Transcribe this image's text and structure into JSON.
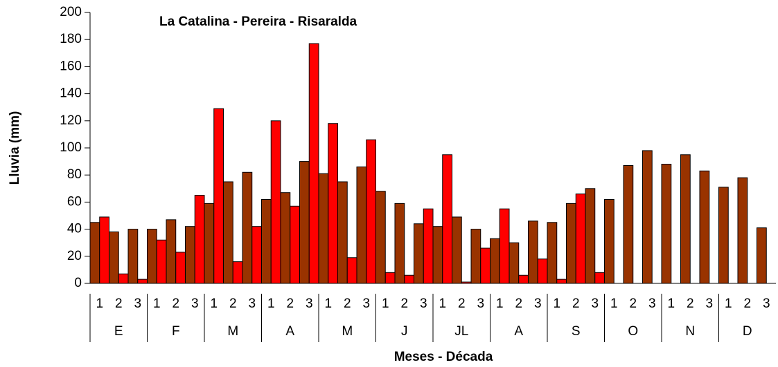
{
  "chart_data": {
    "type": "bar",
    "title": "La Catalina - Pereira - Risaralda",
    "x_label": "Meses - Década",
    "y_label": "Lluvia (mm)",
    "categories": [
      "1",
      "2",
      "3",
      "1",
      "2",
      "3",
      "1",
      "2",
      "3",
      "1",
      "2",
      "3",
      "1",
      "2",
      "3",
      "1",
      "2",
      "3",
      "1",
      "2",
      "3",
      "1",
      "2",
      "3",
      "1",
      "2",
      "3",
      "1",
      "2",
      "3",
      "1",
      "2",
      "3",
      "1",
      "2",
      "3"
    ],
    "groups": [
      "E",
      "F",
      "M",
      "A",
      "M",
      "J",
      "JL",
      "A",
      "S",
      "O",
      "N",
      "D"
    ],
    "series": [
      {
        "color": "#993300",
        "values": [
          45,
          38,
          40,
          40,
          47,
          42,
          59,
          75,
          82,
          62,
          67,
          90,
          81,
          75,
          86,
          68,
          59,
          44,
          42,
          49,
          40,
          33,
          30,
          46,
          45,
          59,
          70,
          62,
          87,
          98,
          88,
          95,
          83,
          71,
          78,
          41
        ]
      },
      {
        "color": "#ff0000",
        "values": [
          49,
          7,
          3,
          32,
          23,
          65,
          129,
          16,
          42,
          120,
          57,
          177,
          118,
          19,
          106,
          8,
          6,
          55,
          95,
          1,
          26,
          55,
          6,
          18,
          3,
          66,
          8,
          null,
          null,
          null,
          null,
          null,
          null,
          null,
          null,
          null
        ]
      }
    ],
    "ylim": [
      0,
      200
    ],
    "yticks": [
      0,
      20,
      40,
      60,
      80,
      100,
      120,
      140,
      160,
      180,
      200
    ]
  }
}
